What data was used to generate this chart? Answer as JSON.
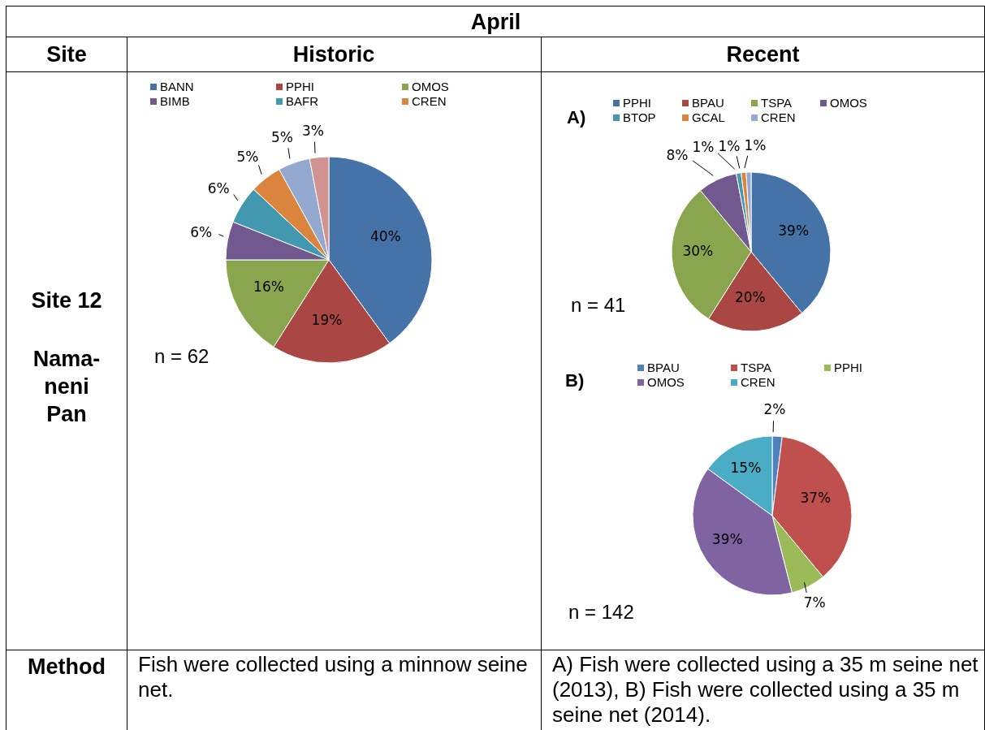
{
  "chart_data": [
    {
      "type": "other",
      "title": "April",
      "annotations": [
        "Site",
        "Historic",
        "Recent",
        "Site 12",
        "Nama-neni Pan",
        "Method",
        "Fish were collected using a minnow seine net.",
        "A) Fish were collected using a 35 m seine net (2013), B) Fish were collected using a 35 m seine net (2014)."
      ]
    },
    {
      "type": "pie",
      "categories": [
        "BANN",
        "PPHI",
        "OMOS",
        "BIMB",
        "BAFR",
        "CREN",
        null,
        null
      ],
      "values": [
        40,
        19,
        16,
        6,
        6,
        5,
        5,
        3
      ],
      "colors": [
        "#4572a7",
        "#aa4643",
        "#89a54e",
        "#71588f",
        "#4198af",
        "#db843d",
        "#93a9cf",
        "#d19392"
      ],
      "value_labels": [
        "40%",
        "19%",
        "16%",
        "6%",
        "6%",
        "5%",
        "5%",
        "3%"
      ],
      "legend": "top",
      "annotations": [
        "n = 62"
      ]
    },
    {
      "type": "pie",
      "title": "A)",
      "categories": [
        "PPHI",
        "BPAU",
        "TSPA",
        "OMOS",
        "BTOP",
        "GCAL",
        "CREN"
      ],
      "values": [
        39,
        20,
        30,
        8,
        1,
        1,
        1
      ],
      "colors": [
        "#4572a7",
        "#aa4643",
        "#89a54e",
        "#71588f",
        "#4198af",
        "#db843d",
        "#93a9cf"
      ],
      "value_labels": [
        "39%",
        "20%",
        "30%",
        "8%",
        "1%",
        "1%",
        "1%"
      ],
      "legend": "top",
      "annotations": [
        "n = 41"
      ]
    },
    {
      "type": "pie",
      "title": "B)",
      "categories": [
        "BPAU",
        "TSPA",
        "PPHI",
        "OMOS",
        "CREN"
      ],
      "values": [
        2,
        37,
        7,
        39,
        15
      ],
      "colors": [
        "#4f81bd",
        "#c0504d",
        "#9bbb59",
        "#8064a2",
        "#4bacc6"
      ],
      "value_labels": [
        "2%",
        "37%",
        "7%",
        "39%",
        "15%"
      ],
      "legend": "top",
      "annotations": [
        "n = 142"
      ]
    }
  ]
}
